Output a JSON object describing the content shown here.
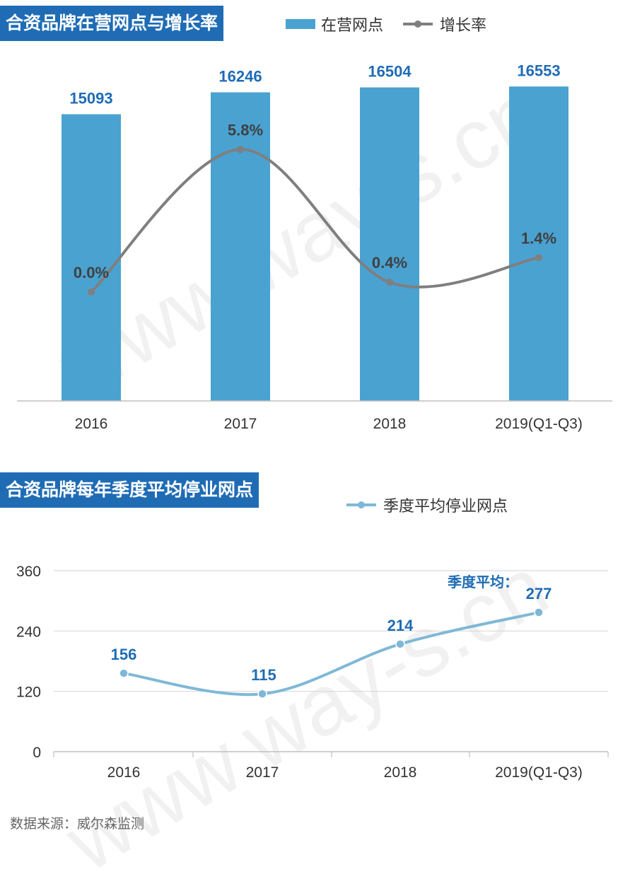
{
  "watermark": "www.way-s.cn",
  "source": "数据来源：威尔森监测",
  "colors": {
    "bar": "#4aa2d1",
    "growth_line": "#7f7f7f",
    "stop_line": "#7fb8d6",
    "label_blue": "#1f6cb5",
    "title_bg": "#1f6cb5"
  },
  "chart_data": [
    {
      "type": "bar",
      "title": "合资品牌在营网点与增长率",
      "categories": [
        "2016",
        "2017",
        "2018",
        "2019(Q1-Q3)"
      ],
      "series": [
        {
          "name": "在营网点",
          "kind": "bar",
          "values": [
            15093,
            16246,
            16504,
            16553
          ],
          "labels": [
            "15093",
            "16246",
            "16504",
            "16553"
          ]
        },
        {
          "name": "增长率",
          "kind": "line",
          "values": [
            0.0,
            5.8,
            0.4,
            1.4
          ],
          "labels": [
            "0.0%",
            "5.8%",
            "0.4%",
            "1.4%"
          ]
        }
      ],
      "legend": [
        "在营网点",
        "增长率"
      ],
      "bar_range": [
        0,
        18500
      ],
      "rate_range": [
        -2.5,
        9.0
      ],
      "legend_position": "top"
    },
    {
      "type": "line",
      "title": "合资品牌每年季度平均停业网点",
      "categories": [
        "2016",
        "2017",
        "2018",
        "2019(Q1-Q3)"
      ],
      "series": [
        {
          "name": "季度平均停业网点",
          "values": [
            156,
            115,
            214,
            277
          ],
          "labels": [
            "156",
            "115",
            "214",
            "277"
          ]
        }
      ],
      "legend": [
        "季度平均停业网点"
      ],
      "annotation": "季度平均：",
      "ylim": [
        0,
        360
      ],
      "yticks": [
        "0",
        "120",
        "240",
        "360"
      ],
      "grid": true,
      "legend_position": "top"
    }
  ]
}
